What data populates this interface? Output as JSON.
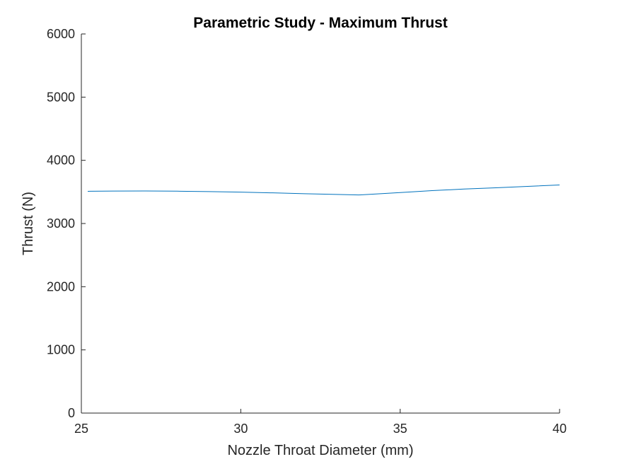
{
  "chart_data": {
    "type": "line",
    "title": "Parametric Study - Maximum Thrust",
    "xlabel": "Nozzle Throat Diameter (mm)",
    "ylabel": "Thrust (N)",
    "xlim": [
      25,
      40
    ],
    "ylim": [
      0,
      6000
    ],
    "xticks": [
      25,
      30,
      35,
      40
    ],
    "yticks": [
      0,
      1000,
      2000,
      3000,
      4000,
      5000,
      6000
    ],
    "grid": false,
    "legend": "none",
    "series": [
      {
        "color": "#0072bd",
        "x": [
          25.2,
          26,
          27,
          28,
          29,
          30,
          31,
          32,
          33,
          33.7,
          34,
          35,
          36,
          37,
          38,
          39,
          40
        ],
        "y": [
          3510,
          3514,
          3515,
          3512,
          3505,
          3497,
          3485,
          3472,
          3460,
          3452,
          3460,
          3490,
          3520,
          3545,
          3565,
          3588,
          3610
        ]
      }
    ]
  }
}
